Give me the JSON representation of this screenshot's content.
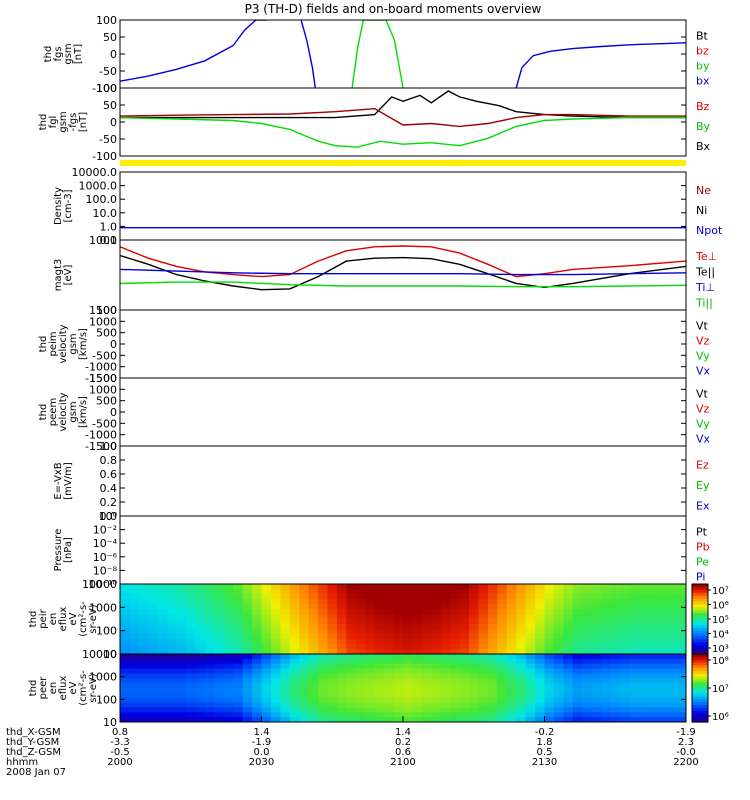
{
  "title": "P3 (TH-D) fields and on-board moments overview",
  "colors": {
    "black": "#000000",
    "red": "#e00000",
    "darkred": "#a00000",
    "green": "#00dd00",
    "blue": "#0000dd",
    "yellow": "#ffee00"
  },
  "chart_data": [
    {
      "type": "line",
      "name": "fgs",
      "ylabel": [
        "thd",
        "fgs",
        "gsm",
        "[nT]"
      ],
      "ylim": [
        -100,
        100
      ],
      "yticks": [
        "100",
        "50",
        "0",
        "-50",
        "-100"
      ],
      "legend": [
        {
          "label": "Bt",
          "color": "#000000"
        },
        {
          "label": "bz",
          "color": "#e00000"
        },
        {
          "label": "by",
          "color": "#00bb00"
        },
        {
          "label": "bx",
          "color": "#0000cc"
        }
      ],
      "series": [
        {
          "name": "bx",
          "color": "#0000dd",
          "x": [
            0,
            5,
            10,
            15,
            20,
            22,
            24,
            26
          ],
          "y": [
            -80,
            -65,
            -45,
            -20,
            25,
            70,
            100,
            100
          ]
        },
        {
          "name": "bx2",
          "color": "#0000dd",
          "x": [
            70,
            71,
            73,
            76,
            80,
            85,
            90,
            95,
            100
          ],
          "y": [
            -100,
            -40,
            -5,
            8,
            16,
            22,
            27,
            30,
            33
          ]
        },
        {
          "name": "by",
          "color": "#00dd00",
          "x": [
            41,
            42,
            43,
            45,
            47,
            48.5,
            50
          ],
          "y": [
            -100,
            20,
            100,
            100,
            100,
            40,
            -100
          ]
        },
        {
          "name": "bx3",
          "color": "#0000dd",
          "x": [
            32,
            33,
            34,
            34.5
          ],
          "y": [
            100,
            40,
            -40,
            -100
          ]
        }
      ]
    },
    {
      "type": "line",
      "name": "fgl",
      "ylabel": [
        "thd",
        "fgl",
        "gsm",
        "-fgs",
        "[nT]"
      ],
      "ylim": [
        -130,
        100
      ],
      "yticks": [
        "100",
        "50",
        "0",
        "-50",
        "-100"
      ],
      "legend": [
        {
          "label": "Bz",
          "color": "#e00000"
        },
        {
          "label": "By",
          "color": "#00bb00"
        },
        {
          "label": "Bx",
          "color": "#000000"
        }
      ],
      "series": [
        {
          "name": "Bx",
          "color": "#000000",
          "x": [
            0,
            10,
            20,
            30,
            38,
            45,
            48,
            50,
            53,
            55,
            58,
            60,
            63,
            67,
            70,
            75,
            80,
            90,
            100
          ],
          "y": [
            0,
            0,
            0,
            0,
            0,
            10,
            70,
            55,
            75,
            50,
            90,
            70,
            55,
            40,
            20,
            10,
            5,
            0,
            0
          ]
        },
        {
          "name": "Bz",
          "color": "#a00000",
          "x": [
            0,
            10,
            20,
            30,
            38,
            45,
            50,
            55,
            60,
            65,
            70,
            75,
            80,
            90,
            100
          ],
          "y": [
            5,
            8,
            10,
            12,
            20,
            30,
            -25,
            -20,
            -30,
            -20,
            0,
            10,
            10,
            5,
            5
          ]
        },
        {
          "name": "By",
          "color": "#00dd00",
          "x": [
            0,
            10,
            20,
            25,
            30,
            35,
            38,
            42,
            46,
            50,
            55,
            60,
            65,
            70,
            75,
            80,
            90,
            100
          ],
          "y": [
            0,
            -5,
            -10,
            -20,
            -40,
            -80,
            -95,
            -100,
            -80,
            -90,
            -85,
            -95,
            -70,
            -30,
            -10,
            -5,
            0,
            0
          ]
        }
      ]
    },
    {
      "type": "line",
      "name": "density",
      "ylabel": [
        "Density",
        "[cm-3]"
      ],
      "yscale": "log",
      "ylim": [
        0.1,
        10000
      ],
      "yticks": [
        "10000.0",
        "1000.0",
        "100.0",
        "10.0",
        "1.0",
        "0.1"
      ],
      "legend": [
        {
          "label": "Ne",
          "color": "#a00000"
        },
        {
          "label": "Ni",
          "color": "#000000"
        },
        {
          "label": "Npot",
          "color": "#0000cc"
        }
      ],
      "series": [
        {
          "name": "Npot",
          "color": "#0000dd",
          "x": [
            0,
            25,
            50,
            75,
            100
          ],
          "y": [
            0.8,
            0.8,
            0.8,
            0.8,
            0.8
          ]
        }
      ]
    },
    {
      "type": "line",
      "name": "temperature",
      "ylabel": [
        "magt3",
        "[eV]"
      ],
      "yscale": "log",
      "ylim": [
        100,
        1000
      ],
      "yticks": [
        "1000",
        "100"
      ],
      "legend": [
        {
          "label": "Te⊥",
          "color": "#e00000"
        },
        {
          "label": "Te||",
          "color": "#000000"
        },
        {
          "label": "Ti⊥",
          "color": "#0000cc"
        },
        {
          "label": "Ti||",
          "color": "#00bb00"
        }
      ],
      "series": [
        {
          "name": "Te⊥",
          "color": "#e00000",
          "x": [
            0,
            5,
            10,
            15,
            20,
            25,
            30,
            35,
            40,
            45,
            50,
            55,
            60,
            65,
            70,
            75,
            80,
            90,
            100
          ],
          "y": [
            800,
            550,
            420,
            350,
            320,
            300,
            320,
            500,
            700,
            800,
            820,
            800,
            650,
            450,
            300,
            330,
            380,
            430,
            500
          ]
        },
        {
          "name": "Te||",
          "color": "#000000",
          "x": [
            0,
            5,
            10,
            15,
            20,
            25,
            30,
            35,
            40,
            45,
            50,
            55,
            60,
            65,
            70,
            75,
            80,
            90,
            100
          ],
          "y": [
            600,
            450,
            320,
            260,
            220,
            195,
            200,
            300,
            500,
            550,
            560,
            540,
            450,
            330,
            240,
            210,
            240,
            330,
            420
          ]
        },
        {
          "name": "Ti⊥",
          "color": "#0000dd",
          "x": [
            0,
            10,
            20,
            30,
            40,
            50,
            60,
            70,
            80,
            90,
            100
          ],
          "y": [
            380,
            360,
            340,
            330,
            330,
            330,
            330,
            320,
            320,
            330,
            340
          ]
        },
        {
          "name": "Ti||",
          "color": "#00dd00",
          "x": [
            0,
            10,
            20,
            30,
            40,
            50,
            60,
            70,
            80,
            90,
            100
          ],
          "y": [
            240,
            250,
            250,
            230,
            220,
            220,
            220,
            215,
            215,
            220,
            225
          ]
        }
      ]
    },
    {
      "type": "line",
      "name": "peim",
      "ylabel": [
        "thd",
        "peim",
        "velocity",
        "gsm",
        "[km/s]"
      ],
      "ylim": [
        -1500,
        1500
      ],
      "yticks": [
        "1500",
        "1000",
        "500",
        "0",
        "-500",
        "-1000",
        "-1500"
      ],
      "legend": [
        {
          "label": "Vt",
          "color": "#000000"
        },
        {
          "label": "Vz",
          "color": "#e00000"
        },
        {
          "label": "Vy",
          "color": "#00bb00"
        },
        {
          "label": "Vx",
          "color": "#0000cc"
        }
      ],
      "series": []
    },
    {
      "type": "line",
      "name": "peem",
      "ylabel": [
        "thd",
        "peem",
        "velocity",
        "gsm",
        "[km/s]"
      ],
      "ylim": [
        -1500,
        1500
      ],
      "yticks": [
        "1500",
        "1000",
        "500",
        "0",
        "-500",
        "-1000",
        "-1500"
      ],
      "legend": [
        {
          "label": "Vt",
          "color": "#000000"
        },
        {
          "label": "Vz",
          "color": "#e00000"
        },
        {
          "label": "Vy",
          "color": "#00bb00"
        },
        {
          "label": "Vx",
          "color": "#0000cc"
        }
      ],
      "series": []
    },
    {
      "type": "line",
      "name": "efield",
      "ylabel": [
        "E=-VxB",
        "[mV/m]"
      ],
      "ylim": [
        0,
        1
      ],
      "yticks": [
        "1.0",
        "0.8",
        "0.6",
        "0.4",
        "0.2",
        "0.0"
      ],
      "legend": [
        {
          "label": "Ez",
          "color": "#e00000"
        },
        {
          "label": "Ey",
          "color": "#00bb00"
        },
        {
          "label": "Ex",
          "color": "#0000cc"
        }
      ],
      "series": []
    },
    {
      "type": "line",
      "name": "pressure",
      "ylabel": [
        "Pressure",
        "[nPa]"
      ],
      "yscale": "log",
      "ylim": [
        1e-10,
        100.0
      ],
      "yticks": [
        "10⁰",
        "10⁻²",
        "10⁻⁴",
        "10⁻⁶",
        "10⁻⁸",
        "10⁻¹⁰"
      ],
      "legend": [
        {
          "label": "Pt",
          "color": "#000000"
        },
        {
          "label": "Pb",
          "color": "#e00000"
        },
        {
          "label": "Pe",
          "color": "#00bb00"
        },
        {
          "label": "Pi",
          "color": "#0000cc"
        }
      ],
      "series": []
    },
    {
      "type": "heatmap",
      "name": "peir_eflux",
      "ylabel": [
        "thd",
        "peir",
        "en",
        "eflux",
        "eV",
        "(cm²-s-",
        "sr-eV)"
      ],
      "yscale": "log",
      "ylim": [
        7,
        20000
      ],
      "yticks": [
        "10000",
        "1000",
        "100",
        "10"
      ],
      "colorbar": {
        "ticks": [
          "10⁷",
          "10⁶",
          "10⁵",
          "10⁴",
          "10³"
        ]
      },
      "x": [
        0,
        10,
        20,
        25,
        30,
        35,
        40,
        45,
        50,
        55,
        60,
        65,
        70,
        75,
        80,
        90,
        100
      ],
      "level": [
        0.4,
        0.45,
        0.55,
        0.65,
        0.75,
        0.85,
        0.95,
        0.98,
        1.0,
        0.98,
        0.95,
        0.85,
        0.75,
        0.65,
        0.58,
        0.55,
        0.55
      ]
    },
    {
      "type": "heatmap",
      "name": "peer_eflux",
      "ylabel": [
        "thd",
        "peer",
        "en",
        "eflux",
        "eV",
        "(cm²-s-",
        "sr-eV)"
      ],
      "yscale": "log",
      "ylim": [
        7,
        20000
      ],
      "yticks": [
        "10000",
        "1000",
        "100",
        "10"
      ],
      "colorbar": {
        "ticks": [
          "10⁸",
          "10⁷",
          "10⁶"
        ]
      },
      "x": [
        0,
        10,
        20,
        25,
        30,
        35,
        40,
        45,
        50,
        55,
        60,
        65,
        70,
        75,
        80,
        90,
        100
      ],
      "level": [
        0.1,
        0.1,
        0.15,
        0.3,
        0.45,
        0.55,
        0.58,
        0.6,
        0.62,
        0.6,
        0.58,
        0.55,
        0.45,
        0.3,
        0.2,
        0.25,
        0.25
      ]
    }
  ],
  "axis": {
    "row_labels": [
      "thd_X-GSM",
      "thd_Y-GSM",
      "thd_Z-GSM",
      "hhmm",
      "2008 Jan 07"
    ],
    "ticks": [
      {
        "values": [
          "0.8",
          "-3.3",
          "-0.5",
          "2000"
        ]
      },
      {
        "values": [
          "1.4",
          "-1.9",
          "0.0",
          "2030"
        ]
      },
      {
        "values": [
          "1.4",
          "0.2",
          "0.6",
          "2100"
        ]
      },
      {
        "values": [
          "-0.2",
          "1.8",
          "0.5",
          "2130"
        ]
      },
      {
        "values": [
          "-1.9",
          "2.3",
          "-0.0",
          "2200"
        ]
      }
    ]
  }
}
